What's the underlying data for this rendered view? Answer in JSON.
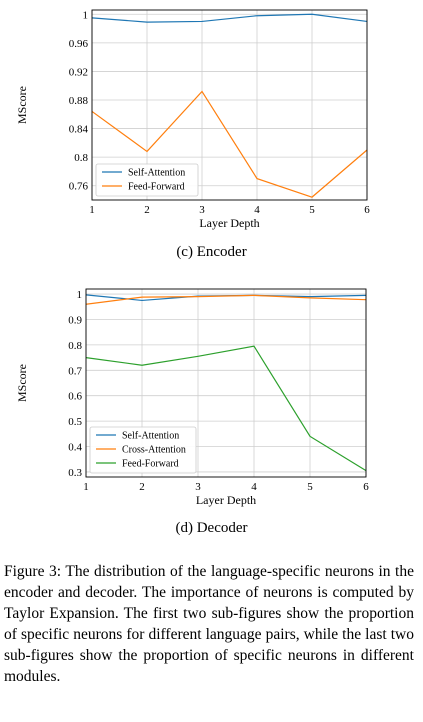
{
  "chart_data": [
    {
      "type": "line",
      "subcaption": "(c) Encoder",
      "xlabel": "Layer Depth",
      "ylabel": "MScore",
      "x": [
        1,
        2,
        3,
        4,
        5,
        6
      ],
      "xticks": [
        "1",
        "2",
        "3",
        "4",
        "5",
        "6"
      ],
      "yticks": [
        {
          "value": 0.76,
          "label": "0.76"
        },
        {
          "value": 0.8,
          "label": "0.8"
        },
        {
          "value": 0.84,
          "label": "0.84"
        },
        {
          "value": 0.88,
          "label": "0.88"
        },
        {
          "value": 0.92,
          "label": "0.92"
        },
        {
          "value": 0.96,
          "label": "0.96"
        },
        {
          "value": 1.0,
          "label": "1"
        }
      ],
      "xlim": [
        1,
        6
      ],
      "ylim": [
        0.74,
        1.006
      ],
      "grid": true,
      "legend_position": "lower-left",
      "series": [
        {
          "name": "Self-Attention",
          "color": "#1f77b4",
          "values": [
            0.995,
            0.989,
            0.99,
            0.998,
            1.0,
            0.99
          ]
        },
        {
          "name": "Feed-Forward",
          "color": "#ff7f0e",
          "values": [
            0.864,
            0.808,
            0.892,
            0.77,
            0.744,
            0.81
          ]
        }
      ]
    },
    {
      "type": "line",
      "subcaption": "(d) Decoder",
      "xlabel": "Layer Depth",
      "ylabel": "MScore",
      "x": [
        1,
        2,
        3,
        4,
        5,
        6
      ],
      "xticks": [
        "1",
        "2",
        "3",
        "4",
        "5",
        "6"
      ],
      "yticks": [
        {
          "value": 0.3,
          "label": "0.3"
        },
        {
          "value": 0.4,
          "label": "0.4"
        },
        {
          "value": 0.5,
          "label": "0.5"
        },
        {
          "value": 0.6,
          "label": "0.6"
        },
        {
          "value": 0.7,
          "label": "0.7"
        },
        {
          "value": 0.8,
          "label": "0.8"
        },
        {
          "value": 0.9,
          "label": "0.9"
        },
        {
          "value": 1.0,
          "label": "1"
        }
      ],
      "xlim": [
        1,
        6
      ],
      "ylim": [
        0.28,
        1.02
      ],
      "grid": true,
      "legend_position": "lower-left",
      "series": [
        {
          "name": "Self-Attention",
          "color": "#1f77b4",
          "values": [
            0.997,
            0.975,
            0.992,
            0.995,
            0.99,
            0.995
          ]
        },
        {
          "name": "Cross-Attention",
          "color": "#ff7f0e",
          "values": [
            0.96,
            0.988,
            0.99,
            0.995,
            0.985,
            0.978
          ]
        },
        {
          "name": "Feed-Forward",
          "color": "#2ca02c",
          "values": [
            0.75,
            0.72,
            0.755,
            0.795,
            0.44,
            0.305
          ]
        }
      ]
    }
  ],
  "caption": "Figure 3: The distribution of the language-specific neurons in the encoder and decoder. The importance of neurons is computed by Taylor Expansion. The first two sub-figures show the proportion of specific neurons for different language pairs, while the last two sub-figures show the proportion of specific neurons in different modules."
}
